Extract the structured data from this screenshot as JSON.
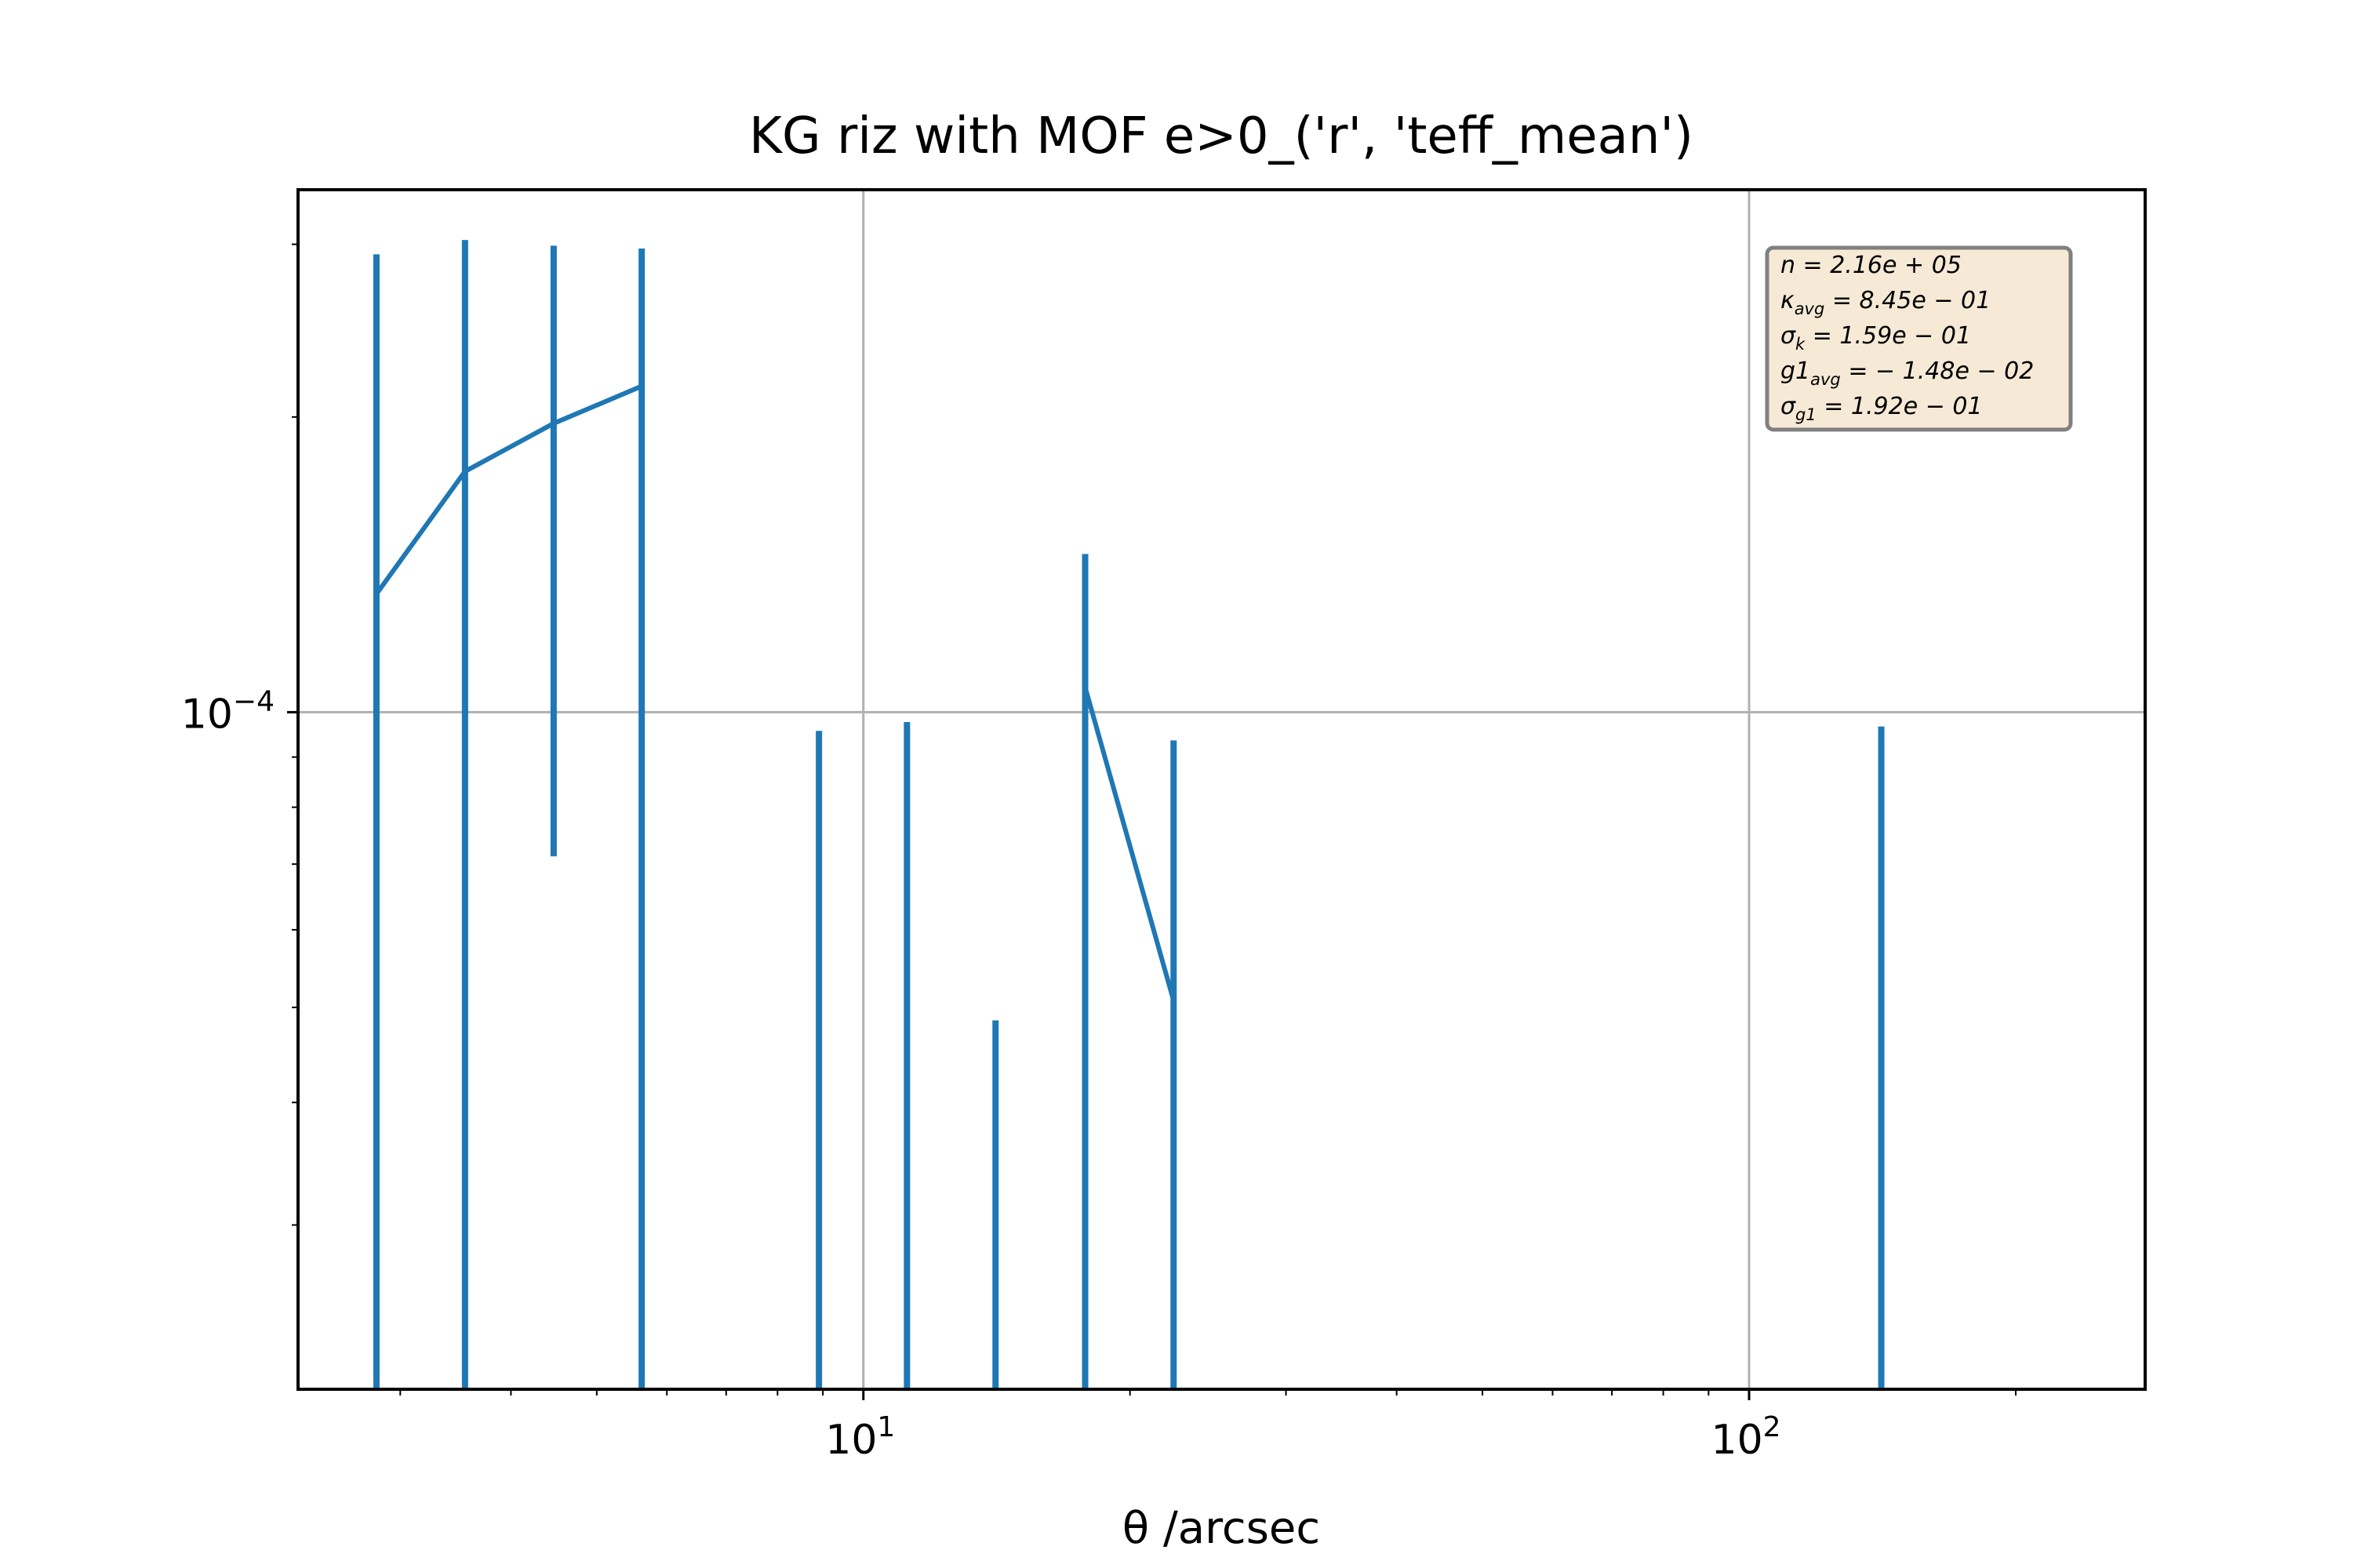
{
  "chart_data": {
    "type": "line",
    "title": "KG riz with MOF e>0_('r', 'teff_mean')",
    "xlabel": "θ /arcsec",
    "ylabel": "",
    "xscale": "log",
    "yscale": "log",
    "xlim": [
      2.3,
      280
    ],
    "ylim": [
      2.04e-05,
      0.000341
    ],
    "grid": true,
    "x_major_ticks": [
      {
        "value": 10,
        "base": "10",
        "exp": "1"
      },
      {
        "value": 100,
        "base": "10",
        "exp": "2"
      }
    ],
    "y_major_ticks": [
      {
        "value": 0.0001,
        "base": "10",
        "exp": "−4"
      }
    ],
    "color": "#1f77b4",
    "line_series": {
      "x": [
        2.82,
        3.55,
        4.47,
        5.62
      ],
      "y": [
        0.000132,
        0.000176,
        0.000197,
        0.000215
      ]
    },
    "line_series_2": {
      "x": [
        17.8,
        22.4
      ],
      "y": [
        0.000106,
        5.08e-05
      ]
    },
    "error_bars": [
      {
        "x": 2.82,
        "low": 2.04e-05,
        "high": 0.000293
      },
      {
        "x": 3.55,
        "low": 2.04e-05,
        "high": 0.000303
      },
      {
        "x": 4.47,
        "low": 7.13e-05,
        "high": 0.000299
      },
      {
        "x": 5.62,
        "low": 2.04e-05,
        "high": 0.000297
      },
      {
        "x": 8.91,
        "low": 2.04e-05,
        "high": 9.57e-05
      },
      {
        "x": 11.2,
        "low": 2.04e-05,
        "high": 9.77e-05
      },
      {
        "x": 14.1,
        "low": 2.04e-05,
        "high": 4.85e-05
      },
      {
        "x": 17.8,
        "low": 2.04e-05,
        "high": 0.000145
      },
      {
        "x": 22.4,
        "low": 2.04e-05,
        "high": 9.36e-05
      },
      {
        "x": 141,
        "low": 2.04e-05,
        "high": 9.67e-05
      }
    ],
    "stats_box": {
      "position": "top-right",
      "facecolor": "#f6ead6",
      "edgecolor": "#808080",
      "lines": [
        {
          "sym": "n",
          "sub": "",
          "val": " = 2.16e + 05"
        },
        {
          "sym": "κ",
          "sub": "avg",
          "val": " = 8.45e − 01"
        },
        {
          "sym": "σ",
          "sub": "k",
          "val": " = 1.59e − 01"
        },
        {
          "sym": "g1",
          "sub": "avg",
          "val": " = − 1.48e − 02"
        },
        {
          "sym": "σ",
          "sub": "g1",
          "val": " = 1.92e − 01"
        }
      ]
    }
  }
}
